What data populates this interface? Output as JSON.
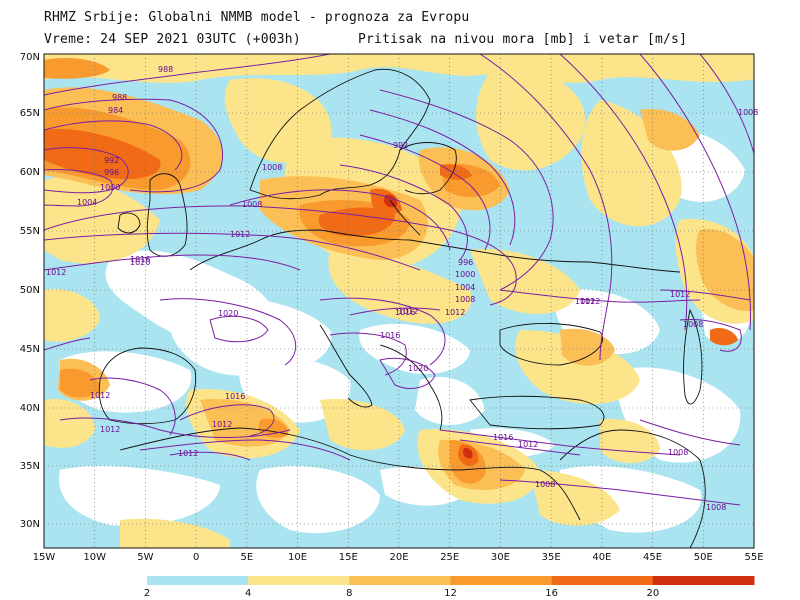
{
  "header": {
    "line1": "RHMZ Srbije: Globalni NMMB model - prognoza za Evropu",
    "line2": "Vreme: 24 SEP 2021 03UTC (+003h)",
    "line3": "Pritisak na nivou mora [mb] i vetar [m/s]"
  },
  "map": {
    "lat_labels": [
      "70N",
      "65N",
      "60N",
      "55N",
      "50N",
      "45N",
      "40N",
      "35N",
      "30N"
    ],
    "lon_labels": [
      "15W",
      "10W",
      "5W",
      "0",
      "5E",
      "10E",
      "15E",
      "20E",
      "25E",
      "30E",
      "35E",
      "40E",
      "45E",
      "50E",
      "55E"
    ],
    "isobar_color": "#7b1fa2",
    "isobar_labels": [
      "988",
      "988",
      "984",
      "992",
      "996",
      "1000",
      "1004",
      "1008",
      "992",
      "996",
      "1000",
      "1004",
      "1008",
      "1008",
      "1012",
      "1012",
      "1016",
      "1016",
      "1020",
      "1016",
      "1012",
      "1020",
      "1012",
      "1016",
      "1012",
      "1012",
      "1016",
      "1012",
      "1012",
      "1008",
      "1008",
      "1012",
      "1008",
      "1008",
      "1008",
      "1012",
      "1020",
      "1012",
      "1012"
    ]
  },
  "colorbar": {
    "labels": [
      "2",
      "4",
      "8",
      "12",
      "16",
      "20"
    ],
    "colors": [
      "#a9e4f0",
      "#fbe48a",
      "#fbbf55",
      "#f99a2e",
      "#f16a16",
      "#d03010"
    ]
  },
  "legend_colors": {
    "calm": "#ffffff",
    "light": "#a9e4f0",
    "moderate": "#fbe48a",
    "fresh": "#fbbf55",
    "strong": "#f99a2e",
    "gale": "#f16a16",
    "storm": "#d03010"
  }
}
